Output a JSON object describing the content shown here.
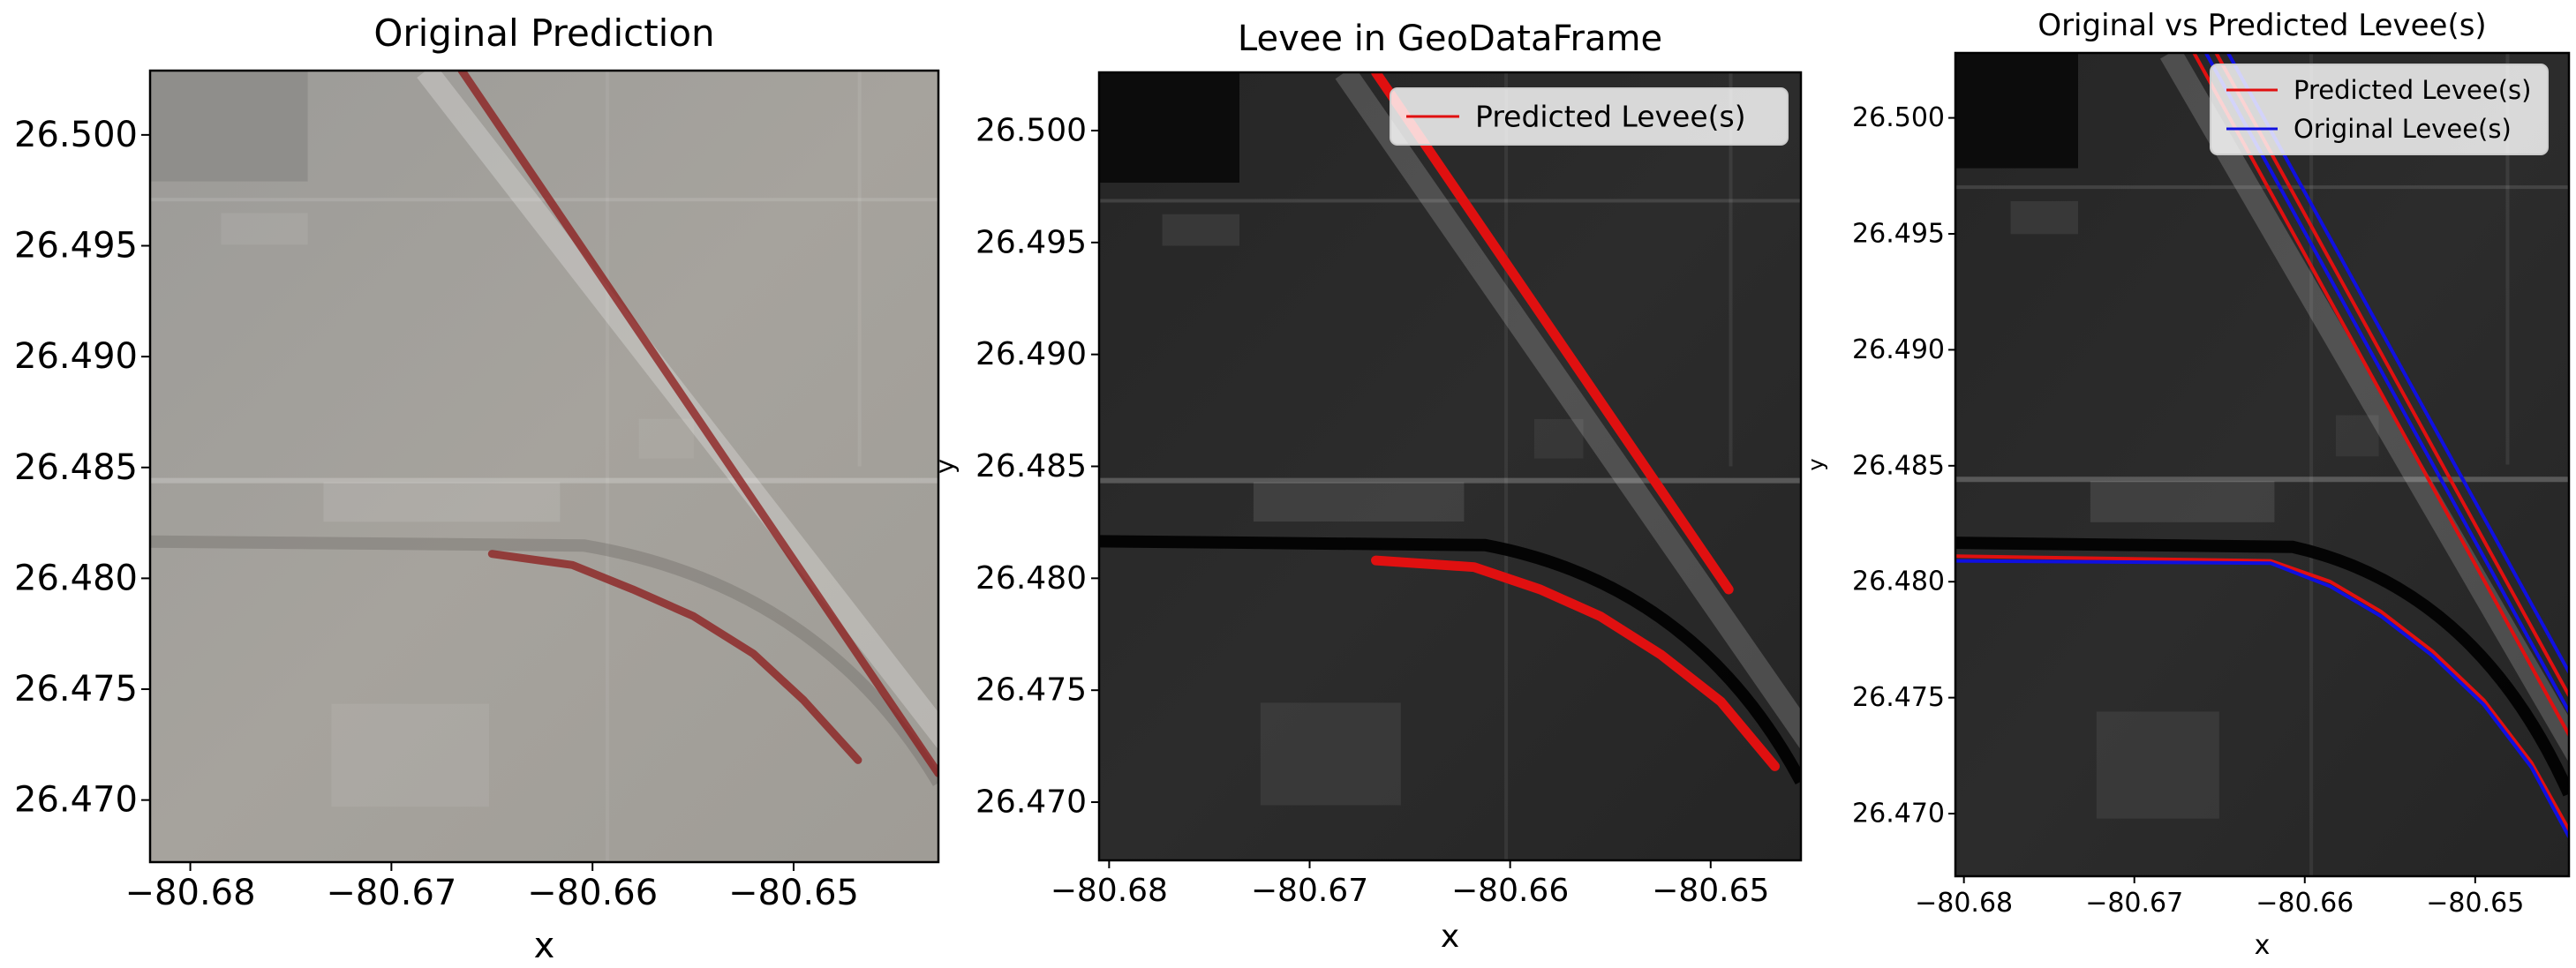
{
  "chart_data": [
    {
      "type": "map",
      "title": "Original Prediction",
      "xlabel": "x",
      "ylabel": "",
      "xlim": [
        -80.682,
        -80.6428
      ],
      "ylim": [
        26.4672,
        26.5029
      ],
      "xticks": [
        -80.68,
        -80.67,
        -80.66,
        -80.65
      ],
      "xtick_labels": [
        "−80.68",
        "−80.67",
        "−80.66",
        "−80.65"
      ],
      "yticks": [
        26.47,
        26.475,
        26.48,
        26.485,
        26.49,
        26.495,
        26.5
      ],
      "ytick_labels": [
        "26.470",
        "26.475",
        "26.480",
        "26.485",
        "26.490",
        "26.495",
        "26.500"
      ],
      "background": "light grey aerial image",
      "legend": null,
      "series": [
        {
          "color": "#8b1a1a",
          "style": "overlay",
          "x": [
            -80.6665,
            -80.6428
          ],
          "y": [
            26.5029,
            26.4712
          ]
        },
        {
          "color": "#8b1a1a",
          "style": "overlay",
          "x": [
            -80.665,
            -80.661,
            -80.658,
            -80.655,
            -80.652,
            -80.6495,
            -80.6468
          ],
          "y": [
            26.4811,
            26.4806,
            26.4795,
            26.4783,
            26.4766,
            26.4745,
            26.4718
          ]
        }
      ]
    },
    {
      "type": "map",
      "title": "Levee in GeoDataFrame",
      "xlabel": "x",
      "ylabel": "y",
      "xlim": [
        -80.6805,
        -80.6455
      ],
      "ylim": [
        26.4674,
        26.5026
      ],
      "xticks": [
        -80.68,
        -80.67,
        -80.66,
        -80.65
      ],
      "xtick_labels": [
        "−80.68",
        "−80.67",
        "−80.66",
        "−80.65"
      ],
      "yticks": [
        26.47,
        26.475,
        26.48,
        26.485,
        26.49,
        26.495,
        26.5
      ],
      "ytick_labels": [
        "26.470",
        "26.475",
        "26.480",
        "26.485",
        "26.490",
        "26.495",
        "26.500"
      ],
      "background": "dark grey aerial image",
      "legend": {
        "position": "upper right",
        "entries": [
          {
            "label": "Predicted Levee(s)",
            "color": "#e01010"
          }
        ]
      },
      "series": [
        {
          "name": "Predicted Levee(s)",
          "color": "#e01010",
          "x": [
            -80.6667,
            -80.6491
          ],
          "y": [
            26.5026,
            26.4795
          ]
        },
        {
          "name": "Predicted Levee(s)",
          "color": "#e01010",
          "x": [
            -80.6667,
            -80.6618,
            -80.6585,
            -80.6555,
            -80.6525,
            -80.6495,
            -80.6468
          ],
          "y": [
            26.4808,
            26.4805,
            26.4795,
            26.4783,
            26.4766,
            26.4745,
            26.4716
          ]
        }
      ]
    },
    {
      "type": "map",
      "title": "Original vs Predicted Levee(s)",
      "xlabel": "x",
      "ylabel": "y",
      "xlim": [
        -80.6805,
        -80.6445
      ],
      "ylim": [
        26.4673,
        26.5028
      ],
      "xticks": [
        -80.68,
        -80.67,
        -80.66,
        -80.65
      ],
      "xtick_labels": [
        "−80.68",
        "−80.67",
        "−80.66",
        "−80.65"
      ],
      "yticks": [
        26.47,
        26.475,
        26.48,
        26.485,
        26.49,
        26.495,
        26.5
      ],
      "ytick_labels": [
        "26.470",
        "26.475",
        "26.480",
        "26.485",
        "26.490",
        "26.495",
        "26.500"
      ],
      "background": "dark grey aerial image",
      "legend": {
        "position": "upper right",
        "entries": [
          {
            "label": "Predicted Levee(s)",
            "color": "#e01010"
          },
          {
            "label": "Original Levee(s)",
            "color": "#1010e0"
          }
        ]
      },
      "series": [
        {
          "name": "Predicted Levee(s)",
          "color": "#e01010",
          "x": [
            -80.6665,
            -80.6445
          ],
          "y": [
            26.5028,
            26.4734
          ]
        },
        {
          "name": "Predicted Levee(s)",
          "color": "#e01010",
          "x": [
            -80.6652,
            -80.6445
          ],
          "y": [
            26.5028,
            26.4751
          ]
        },
        {
          "name": "Original Levee(s)",
          "color": "#1010e0",
          "x": [
            -80.6658,
            -80.6445
          ],
          "y": [
            26.5028,
            26.4744
          ]
        },
        {
          "name": "Original Levee(s)",
          "color": "#1010e0",
          "x": [
            -80.6645,
            -80.6445
          ],
          "y": [
            26.5028,
            26.4761
          ]
        },
        {
          "name": "Predicted Levee(s)",
          "color": "#e01010",
          "x": [
            -80.6805,
            -80.662,
            -80.6585,
            -80.6555,
            -80.6525,
            -80.6495,
            -80.6467,
            -80.6445
          ],
          "y": [
            26.4811,
            26.4809,
            26.48,
            26.4787,
            26.477,
            26.4749,
            26.4722,
            26.4693
          ]
        },
        {
          "name": "Original Levee(s)",
          "color": "#1010e0",
          "x": [
            -80.6805,
            -80.662,
            -80.6585,
            -80.6555,
            -80.6525,
            -80.6495,
            -80.6467,
            -80.6445
          ],
          "y": [
            26.4809,
            26.4808,
            26.4798,
            26.4785,
            26.4768,
            26.4747,
            26.472,
            26.469
          ]
        }
      ]
    }
  ]
}
